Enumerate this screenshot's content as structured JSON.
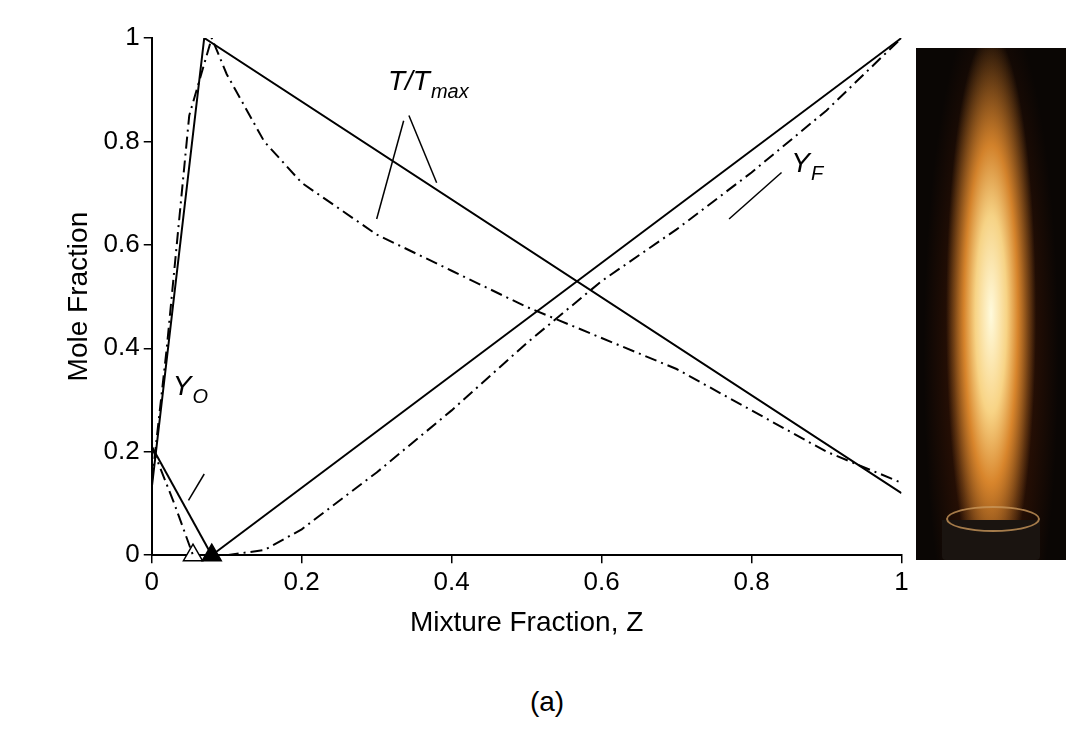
{
  "chart_data": {
    "type": "line",
    "xlabel": "Mixture Fraction, Z",
    "ylabel": "Mole Fraction",
    "caption": "(a)",
    "xlim": [
      0,
      1
    ],
    "ylim": [
      0,
      1
    ],
    "xticks": [
      0,
      0.2,
      0.4,
      0.6,
      0.8,
      1
    ],
    "yticks": [
      0,
      0.2,
      0.4,
      0.6,
      0.8,
      1
    ],
    "grid": false,
    "series": [
      {
        "color": "#000000",
        "line_style": "solid",
        "x": [
          0,
          0.07,
          1
        ],
        "values": [
          0.13,
          1.0,
          0.12
        ]
      },
      {
        "color": "#000000",
        "line_style": "dashdot",
        "x": [
          0,
          0.02,
          0.05,
          0.08,
          0.1,
          0.15,
          0.2,
          0.3,
          0.4,
          0.5,
          0.6,
          0.7,
          0.8,
          0.9,
          1
        ],
        "values": [
          0.14,
          0.4,
          0.85,
          1.0,
          0.93,
          0.8,
          0.72,
          0.62,
          0.55,
          0.48,
          0.42,
          0.36,
          0.28,
          0.2,
          0.14
        ]
      },
      {
        "color": "#000000",
        "line_style": "solid",
        "x": [
          0.08,
          1
        ],
        "values": [
          0,
          1
        ]
      },
      {
        "color": "#000000",
        "line_style": "dashdot",
        "x": [
          0.1,
          0.15,
          0.2,
          0.3,
          0.4,
          0.5,
          0.6,
          0.7,
          0.8,
          0.9,
          1
        ],
        "values": [
          0,
          0.01,
          0.05,
          0.16,
          0.28,
          0.41,
          0.53,
          0.63,
          0.74,
          0.86,
          1
        ]
      },
      {
        "color": "#000000",
        "line_style": "solid",
        "x": [
          0,
          0.08
        ],
        "values": [
          0.21,
          0
        ]
      },
      {
        "color": "#000000",
        "line_style": "dashdot",
        "x": [
          0,
          0.03,
          0.055
        ],
        "values": [
          0.21,
          0.1,
          0
        ]
      },
      {
        "type": "scatter",
        "marker": "triangle",
        "color": "#ffffff",
        "x": [
          0.055
        ],
        "values": [
          0
        ]
      },
      {
        "type": "scatter",
        "marker": "triangle",
        "color": "#000000",
        "x": [
          0.08
        ],
        "values": [
          0
        ]
      }
    ],
    "annotations": [
      {
        "text": "T/T",
        "sub": "max",
        "x": 0.315,
        "y": 0.9
      },
      {
        "text": "Y",
        "sub": "F",
        "x": 0.853,
        "y": 0.74
      },
      {
        "text": "Y",
        "sub": "O",
        "x": 0.028,
        "y": 0.31
      }
    ]
  }
}
